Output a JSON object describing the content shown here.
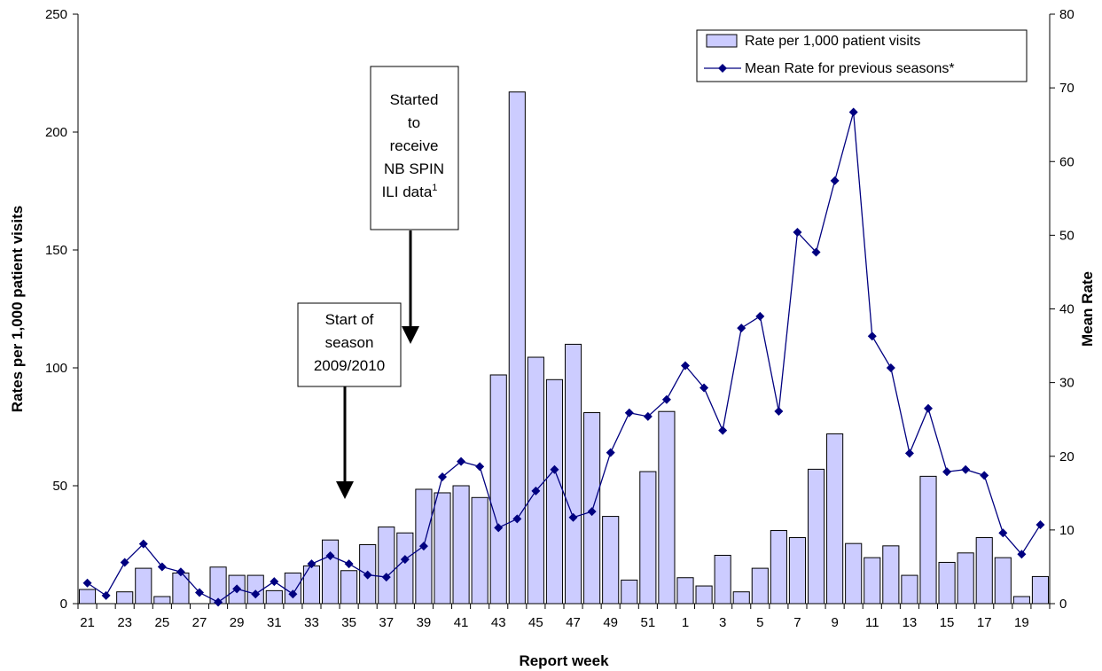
{
  "chart_data": {
    "type": "bar",
    "xlabel": "Report week",
    "ylabel": "Rates per 1,000 patient visits",
    "y2label": "Mean Rate",
    "ylim": [
      0,
      250
    ],
    "y2lim": [
      0,
      80
    ],
    "yticks": [
      0,
      50,
      100,
      150,
      200,
      250
    ],
    "y2ticks": [
      0,
      10,
      20,
      30,
      40,
      50,
      60,
      70,
      80
    ],
    "grid": false,
    "legend_position": "top-right",
    "categories": [
      "21",
      "22",
      "23",
      "24",
      "25",
      "26",
      "27",
      "28",
      "29",
      "30",
      "31",
      "32",
      "33",
      "34",
      "35",
      "36",
      "37",
      "38",
      "39",
      "40",
      "41",
      "42",
      "43",
      "44",
      "45",
      "46",
      "47",
      "48",
      "49",
      "50",
      "51",
      "52",
      "1",
      "2",
      "3",
      "4",
      "5",
      "6",
      "7",
      "8",
      "9",
      "10",
      "11",
      "12",
      "13",
      "14",
      "15",
      "16",
      "17",
      "18",
      "19",
      "20"
    ],
    "tick_labels": [
      "21",
      "",
      "23",
      "",
      "25",
      "",
      "27",
      "",
      "29",
      "",
      "31",
      "",
      "33",
      "",
      "35",
      "",
      "37",
      "",
      "39",
      "",
      "41",
      "",
      "43",
      "",
      "45",
      "",
      "47",
      "",
      "49",
      "",
      "51",
      "",
      "1",
      "",
      "3",
      "",
      "5",
      "",
      "7",
      "",
      "9",
      "",
      "11",
      "",
      "13",
      "",
      "15",
      "",
      "17",
      "",
      "19",
      ""
    ],
    "series": [
      {
        "name": "Rate per 1,000 patient visits",
        "type": "bar",
        "axis": "left",
        "color": "#ccccff",
        "values": [
          6,
          0,
          5,
          15,
          3,
          13,
          0,
          15.5,
          12,
          12,
          5.5,
          13,
          16,
          27,
          14,
          25,
          32.5,
          30,
          48.5,
          47,
          50,
          45,
          97,
          217,
          104.5,
          95,
          110,
          81,
          37,
          10,
          56,
          81.5,
          11,
          7.5,
          20.5,
          5,
          15,
          31,
          28,
          57,
          72,
          25.5,
          19.5,
          24.5,
          12,
          54,
          17.5,
          21.5,
          28,
          19.5,
          3,
          11.5
        ]
      },
      {
        "name": "Mean Rate for previous seasons*",
        "type": "line",
        "axis": "right",
        "color": "#000080",
        "values": [
          2.8,
          1.1,
          5.6,
          8.1,
          5.0,
          4.3,
          1.5,
          0.2,
          2.0,
          1.3,
          3.0,
          1.3,
          5.4,
          6.5,
          5.4,
          3.9,
          3.6,
          6.0,
          7.8,
          17.2,
          19.3,
          18.6,
          10.3,
          11.5,
          15.3,
          18.2,
          11.7,
          12.5,
          20.5,
          25.9,
          25.4,
          27.7,
          32.3,
          29.3,
          23.5,
          37.4,
          39.0,
          26.1,
          50.4,
          47.7,
          57.4,
          66.7,
          36.3,
          32.0,
          20.4,
          26.5,
          17.9,
          18.2,
          17.4,
          9.6,
          6.7,
          10.7
        ]
      }
    ],
    "annotations": [
      {
        "lines": [
          "Started",
          "to",
          "receive",
          "NB SPIN",
          "ILI data"
        ],
        "superscript": "1",
        "points_to": "39"
      },
      {
        "lines": [
          "Start of",
          "season",
          "2009/2010"
        ],
        "points_to": "35"
      }
    ]
  }
}
